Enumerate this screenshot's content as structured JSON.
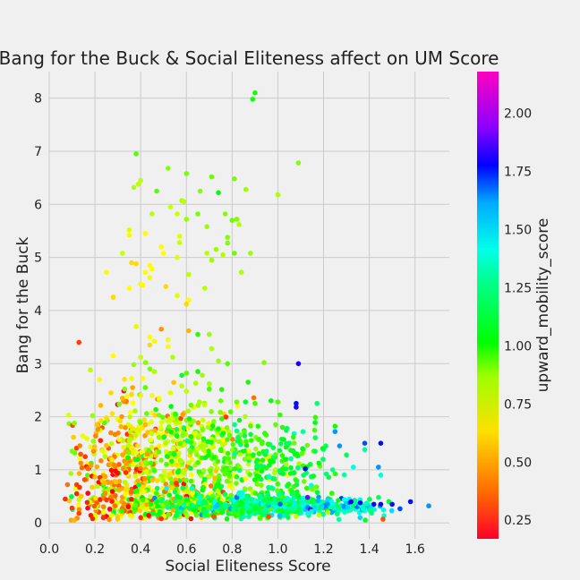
{
  "chart_data": {
    "type": "scatter",
    "title": "Bang for the Buck & Social Eliteness affect on UM Score",
    "xlabel": "Social Eliteness Score",
    "ylabel": "Bang for the Buck",
    "colorbar_label": "upward_mobility_score",
    "xlim": [
      0.0,
      1.75
    ],
    "ylim": [
      -0.3,
      8.5
    ],
    "x_ticks": [
      "0.0",
      "0.2",
      "0.4",
      "0.6",
      "0.8",
      "1.0",
      "1.2",
      "1.4",
      "1.6"
    ],
    "y_ticks": [
      "0",
      "1",
      "2",
      "3",
      "4",
      "5",
      "6",
      "7",
      "8"
    ],
    "colorbar_ticks": [
      "0.25",
      "0.50",
      "0.75",
      "1.00",
      "1.25",
      "1.50",
      "1.75",
      "2.00"
    ],
    "color_range": [
      0.17,
      2.18
    ],
    "colormap": "gist_rainbow",
    "grid": true,
    "legend": "colorbar-right",
    "points": [
      [
        0.9,
        8.1,
        0.95
      ],
      [
        0.89,
        7.98,
        0.95
      ],
      [
        0.38,
        6.95,
        0.85
      ],
      [
        1.09,
        6.78,
        0.78
      ],
      [
        0.52,
        6.68,
        0.78
      ],
      [
        0.6,
        6.58,
        0.8
      ],
      [
        0.71,
        6.52,
        0.82
      ],
      [
        0.81,
        6.48,
        0.8
      ],
      [
        0.4,
        6.45,
        0.7
      ],
      [
        0.39,
        6.38,
        0.7
      ],
      [
        0.37,
        6.32,
        0.72
      ],
      [
        0.47,
        6.25,
        0.85
      ],
      [
        0.86,
        6.28,
        0.75
      ],
      [
        0.66,
        6.25,
        0.78
      ],
      [
        0.74,
        6.22,
        1.0
      ],
      [
        1.0,
        6.18,
        0.72
      ],
      [
        0.58,
        6.07,
        0.72
      ],
      [
        0.59,
        6.05,
        0.7
      ],
      [
        0.53,
        5.95,
        0.68
      ],
      [
        0.56,
        5.82,
        0.68
      ],
      [
        0.65,
        5.82,
        0.8
      ],
      [
        0.77,
        5.82,
        0.78
      ],
      [
        0.45,
        5.82,
        0.7
      ],
      [
        0.6,
        5.72,
        0.75
      ],
      [
        0.8,
        5.7,
        0.82
      ],
      [
        0.82,
        5.72,
        0.78
      ],
      [
        0.35,
        5.52,
        0.65
      ],
      [
        0.42,
        5.45,
        0.6
      ],
      [
        0.35,
        5.42,
        0.62
      ],
      [
        0.69,
        5.58,
        0.75
      ],
      [
        0.83,
        5.62,
        0.72
      ],
      [
        0.57,
        5.4,
        0.65
      ],
      [
        0.78,
        5.38,
        0.78
      ],
      [
        0.57,
        5.28,
        0.68
      ],
      [
        0.78,
        5.27,
        0.78
      ],
      [
        0.49,
        5.2,
        0.6
      ],
      [
        0.73,
        5.15,
        0.75
      ],
      [
        0.5,
        5.08,
        0.6
      ],
      [
        0.32,
        5.08,
        0.68
      ],
      [
        0.56,
        5.0,
        0.65
      ],
      [
        0.76,
        5.05,
        0.72
      ],
      [
        0.81,
        5.08,
        0.82
      ],
      [
        0.88,
        5.08,
        0.75
      ],
      [
        0.69,
        5.08,
        0.7
      ],
      [
        0.71,
        4.95,
        0.75
      ],
      [
        0.36,
        4.9,
        0.55
      ],
      [
        0.38,
        4.88,
        0.55
      ],
      [
        0.44,
        4.85,
        0.6
      ],
      [
        0.45,
        4.78,
        0.6
      ],
      [
        0.42,
        4.72,
        0.6
      ],
      [
        0.25,
        4.72,
        0.62
      ],
      [
        0.44,
        4.62,
        0.62
      ],
      [
        0.84,
        4.72,
        0.72
      ],
      [
        0.61,
        4.68,
        0.7
      ],
      [
        0.4,
        4.5,
        0.62
      ],
      [
        0.41,
        4.48,
        0.6
      ],
      [
        0.35,
        4.42,
        0.6
      ],
      [
        0.51,
        4.45,
        0.55
      ],
      [
        0.68,
        4.42,
        0.7
      ],
      [
        0.56,
        4.28,
        0.65
      ],
      [
        0.28,
        4.25,
        0.55
      ],
      [
        0.61,
        4.2,
        0.6
      ],
      [
        0.6,
        4.12,
        0.55
      ],
      [
        0.38,
        3.7,
        0.65
      ],
      [
        0.49,
        3.65,
        0.45
      ],
      [
        0.61,
        3.62,
        0.5
      ],
      [
        0.65,
        3.55,
        0.92
      ],
      [
        0.7,
        3.55,
        0.75
      ],
      [
        0.13,
        3.4,
        0.32
      ],
      [
        0.44,
        3.5,
        0.6
      ],
      [
        0.46,
        3.42,
        0.62
      ],
      [
        0.52,
        3.45,
        0.62
      ],
      [
        0.44,
        3.35,
        0.55
      ],
      [
        0.71,
        3.28,
        0.72
      ],
      [
        0.52,
        3.32,
        0.6
      ],
      [
        0.28,
        3.15,
        0.6
      ],
      [
        0.4,
        3.12,
        0.68
      ],
      [
        0.54,
        3.12,
        0.72
      ],
      [
        0.74,
        3.05,
        0.75
      ],
      [
        0.78,
        3.0,
        0.85
      ],
      [
        0.94,
        3.02,
        0.78
      ],
      [
        1.09,
        3.0,
        1.75
      ],
      [
        0.37,
        2.98,
        0.75
      ],
      [
        0.44,
        2.9,
        0.8
      ],
      [
        0.18,
        2.88,
        0.7
      ],
      [
        0.46,
        2.85,
        0.72
      ],
      [
        0.6,
        2.82,
        0.85
      ],
      [
        0.65,
        2.85,
        0.95
      ],
      [
        0.67,
        2.78,
        0.75
      ],
      [
        0.58,
        2.78,
        1.05
      ],
      [
        0.36,
        2.72,
        0.62
      ],
      [
        0.41,
        2.72,
        0.6
      ],
      [
        0.22,
        2.7,
        0.62
      ],
      [
        0.7,
        2.62,
        0.75
      ],
      [
        0.87,
        2.65,
        0.95
      ],
      [
        0.58,
        2.58,
        0.7
      ],
      [
        0.33,
        2.52,
        0.78
      ],
      [
        0.42,
        2.55,
        0.85
      ],
      [
        0.7,
        2.52,
        0.88
      ],
      [
        0.6,
        2.48,
        0.7
      ],
      [
        0.53,
        2.45,
        0.65
      ],
      [
        0.27,
        2.45,
        0.55
      ],
      [
        0.36,
        2.42,
        0.55
      ],
      [
        0.4,
        2.4,
        0.58
      ],
      [
        0.45,
        2.4,
        0.62
      ],
      [
        0.34,
        2.38,
        0.62
      ],
      [
        0.48,
        2.35,
        0.62
      ],
      [
        0.32,
        2.35,
        0.5
      ],
      [
        0.75,
        2.3,
        0.82
      ],
      [
        0.82,
        2.28,
        0.82
      ],
      [
        0.9,
        2.25,
        0.88
      ],
      [
        0.97,
        2.3,
        1.0
      ],
      [
        1.0,
        2.28,
        0.85
      ],
      [
        1.08,
        2.25,
        1.7
      ],
      [
        1.08,
        2.18,
        1.75
      ],
      [
        0.62,
        2.22,
        0.82
      ],
      [
        0.19,
        2.02,
        0.75
      ],
      [
        0.25,
        1.98,
        0.55
      ],
      [
        0.31,
        1.92,
        0.55
      ],
      [
        1.25,
        1.82,
        0.95
      ],
      [
        1.02,
        1.8,
        0.92
      ],
      [
        1.04,
        1.78,
        1.1
      ],
      [
        1.25,
        1.72,
        1.5
      ],
      [
        1.11,
        1.72,
        1.2
      ],
      [
        1.38,
        1.5,
        1.6
      ],
      [
        1.45,
        1.5,
        1.7
      ],
      [
        1.21,
        1.45,
        1.1
      ],
      [
        1.27,
        1.45,
        1.5
      ],
      [
        1.38,
        1.38,
        1.2
      ],
      [
        1.3,
        1.28,
        1.1
      ],
      [
        1.12,
        1.02,
        1.7
      ],
      [
        1.44,
        1.05,
        1.5
      ],
      [
        1.45,
        0.9,
        1.3
      ],
      [
        1.24,
        1.0,
        1.2
      ],
      [
        1.33,
        1.05,
        1.3
      ],
      [
        1.13,
        0.48,
        1.9
      ],
      [
        0.1,
        1.35,
        0.8
      ],
      [
        0.11,
        1.88,
        0.78
      ],
      [
        0.12,
        0.72,
        0.32
      ],
      [
        0.12,
        0.55,
        0.28
      ],
      [
        0.07,
        0.45,
        0.3
      ],
      [
        0.08,
        0.72,
        0.4
      ],
      [
        0.1,
        0.28,
        0.32
      ],
      [
        0.13,
        0.18,
        0.32
      ],
      [
        1.66,
        0.32,
        1.5
      ],
      [
        1.58,
        0.4,
        1.7
      ],
      [
        1.5,
        0.35,
        1.7
      ],
      [
        1.46,
        0.07,
        0.35
      ],
      [
        1.45,
        0.35,
        1.75
      ],
      [
        1.42,
        0.35,
        1.75
      ],
      [
        1.36,
        0.38,
        1.7
      ],
      [
        1.32,
        0.4,
        1.7
      ],
      [
        1.22,
        0.2,
        0.72
      ],
      [
        1.18,
        0.15,
        0.7
      ],
      [
        1.08,
        0.12,
        0.68
      ],
      [
        0.62,
        0.08,
        0.25
      ],
      [
        0.49,
        0.08,
        0.3
      ],
      [
        0.4,
        0.1,
        0.3
      ],
      [
        0.19,
        0.08,
        0.28
      ],
      [
        0.96,
        0.12,
        0.35
      ],
      [
        0.72,
        0.12,
        0.35
      ]
    ],
    "clusters": [
      {
        "cx": 0.4,
        "cy": 1.25,
        "sx": 0.13,
        "sy": 0.55,
        "n": 280,
        "c": 0.55,
        "cs": 0.16
      },
      {
        "cx": 0.6,
        "cy": 1.3,
        "sx": 0.14,
        "sy": 0.5,
        "n": 260,
        "c": 0.72,
        "cs": 0.14
      },
      {
        "cx": 0.85,
        "cy": 1.1,
        "sx": 0.14,
        "sy": 0.45,
        "n": 200,
        "c": 0.9,
        "cs": 0.13
      },
      {
        "cx": 1.05,
        "cy": 0.95,
        "sx": 0.1,
        "sy": 0.4,
        "n": 100,
        "c": 1.05,
        "cs": 0.13
      },
      {
        "cx": 0.45,
        "cy": 0.45,
        "sx": 0.18,
        "sy": 0.2,
        "n": 220,
        "c": 0.6,
        "cs": 0.22
      },
      {
        "cx": 0.7,
        "cy": 0.35,
        "sx": 0.15,
        "sy": 0.12,
        "n": 260,
        "c": 0.95,
        "cs": 0.2
      },
      {
        "cx": 0.95,
        "cy": 0.32,
        "sx": 0.14,
        "sy": 0.1,
        "n": 260,
        "c": 1.15,
        "cs": 0.15
      },
      {
        "cx": 1.25,
        "cy": 0.3,
        "sx": 0.12,
        "sy": 0.08,
        "n": 150,
        "c": 1.3,
        "cs": 0.15
      },
      {
        "cx": 0.25,
        "cy": 0.9,
        "sx": 0.08,
        "sy": 0.55,
        "n": 110,
        "c": 0.42,
        "cs": 0.12
      }
    ]
  }
}
